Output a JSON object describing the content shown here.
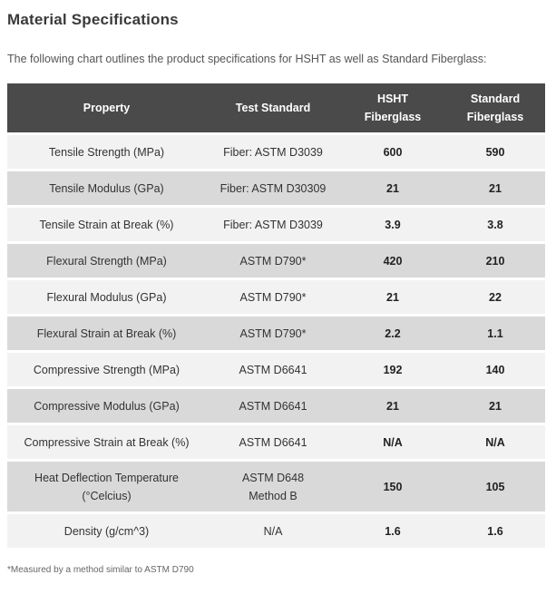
{
  "title": "Material Specifications",
  "intro": "The following chart outlines the product specifications for HSHT as well as Standard Fiberglass:",
  "footnote": "*Measured by a method similar to ASTM D790",
  "colors": {
    "header_bg": "#4a4a4a",
    "header_text": "#ffffff",
    "row_light": "#f2f2f2",
    "row_dark": "#d9d9d9",
    "title_text": "#3a3a3a",
    "body_text": "#333333",
    "footnote_text": "#666666"
  },
  "table": {
    "columns": [
      {
        "id": "property",
        "lines": [
          "Property"
        ]
      },
      {
        "id": "test-standard",
        "lines": [
          "Test Standard"
        ]
      },
      {
        "id": "hsht-fiberglass",
        "lines": [
          "HSHT",
          "Fiberglass"
        ]
      },
      {
        "id": "standard-fiberglass",
        "lines": [
          "Standard",
          "Fiberglass"
        ]
      }
    ],
    "rows": [
      {
        "property": [
          "Tensile Strength (MPa)"
        ],
        "test_standard": [
          "Fiber: ASTM D3039"
        ],
        "hsht": "600",
        "standard": "590"
      },
      {
        "property": [
          "Tensile Modulus (GPa)"
        ],
        "test_standard": [
          "Fiber: ASTM D30309"
        ],
        "hsht": "21",
        "standard": "21"
      },
      {
        "property": [
          "Tensile Strain at Break (%)"
        ],
        "test_standard": [
          "Fiber: ASTM D3039"
        ],
        "hsht": "3.9",
        "standard": "3.8"
      },
      {
        "property": [
          "Flexural Strength (MPa)"
        ],
        "test_standard": [
          "ASTM D790*"
        ],
        "hsht": "420",
        "standard": "210"
      },
      {
        "property": [
          "Flexural Modulus (GPa)"
        ],
        "test_standard": [
          "ASTM D790*"
        ],
        "hsht": "21",
        "standard": "22"
      },
      {
        "property": [
          "Flexural Strain at Break (%)"
        ],
        "test_standard": [
          "ASTM D790*"
        ],
        "hsht": "2.2",
        "standard": "1.1"
      },
      {
        "property": [
          "Compressive Strength (MPa)"
        ],
        "test_standard": [
          "ASTM D6641"
        ],
        "hsht": "192",
        "standard": "140"
      },
      {
        "property": [
          "Compressive Modulus (GPa)"
        ],
        "test_standard": [
          "ASTM D6641"
        ],
        "hsht": "21",
        "standard": "21"
      },
      {
        "property": [
          "Compressive Strain at Break (%)"
        ],
        "test_standard": [
          "ASTM D6641"
        ],
        "hsht": "N/A",
        "standard": "N/A"
      },
      {
        "property": [
          "Heat Deflection Temperature",
          "(°Celcius)"
        ],
        "test_standard": [
          "ASTM D648",
          "Method B"
        ],
        "hsht": "150",
        "standard": "105"
      },
      {
        "property": [
          "Density (g/cm^3)"
        ],
        "test_standard": [
          "N/A"
        ],
        "hsht": "1.6",
        "standard": "1.6"
      }
    ]
  }
}
